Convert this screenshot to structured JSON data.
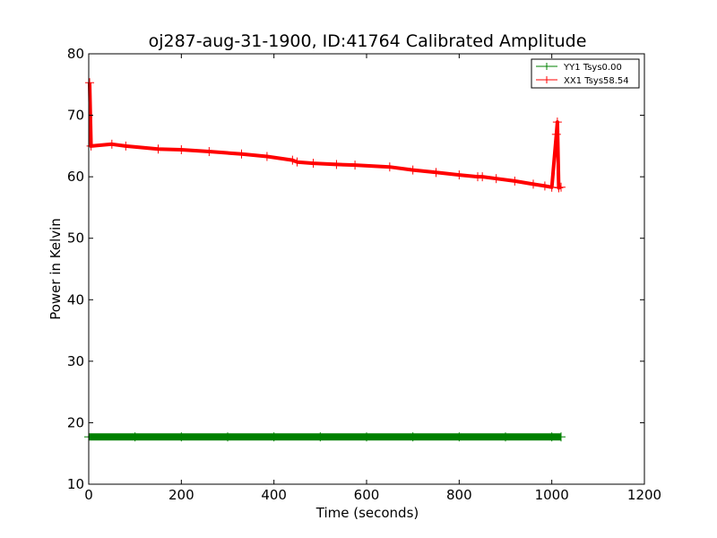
{
  "chart_data": {
    "type": "line",
    "title": "oj287-aug-31-1900, ID:41764 Calibrated Amplitude",
    "xlabel": "Time (seconds)",
    "ylabel": "Power in Kelvin",
    "xlim": [
      0,
      1200
    ],
    "ylim": [
      10,
      80
    ],
    "xticks": [
      "0",
      "200",
      "400",
      "600",
      "800",
      "1000",
      "1200"
    ],
    "yticks": [
      "10",
      "20",
      "30",
      "40",
      "50",
      "60",
      "70",
      "80"
    ],
    "grid": false,
    "legend_position": "top-right",
    "series": [
      {
        "name": "YY1 Tsys0.00",
        "color": "#008000",
        "marker": "+",
        "x": [
          0,
          100,
          200,
          300,
          400,
          500,
          600,
          700,
          800,
          900,
          1000,
          1020
        ],
        "y": [
          17.7,
          17.7,
          17.7,
          17.7,
          17.7,
          17.7,
          17.7,
          17.7,
          17.7,
          17.7,
          17.7,
          17.7
        ]
      },
      {
        "name": "XX1 Tsys58.54",
        "color": "#ff0000",
        "marker": "+",
        "x": [
          2,
          5,
          50,
          80,
          150,
          200,
          260,
          330,
          385,
          440,
          450,
          485,
          535,
          575,
          650,
          700,
          750,
          800,
          840,
          850,
          880,
          920,
          960,
          985,
          1000,
          1010,
          1012,
          1015,
          1020
        ],
        "y": [
          75.3,
          65.0,
          65.3,
          65.0,
          64.5,
          64.4,
          64.1,
          63.7,
          63.3,
          62.7,
          62.4,
          62.2,
          62.0,
          61.9,
          61.6,
          61.1,
          60.7,
          60.3,
          60.0,
          60.0,
          59.7,
          59.3,
          58.8,
          58.5,
          58.3,
          66.9,
          68.9,
          58.2,
          58.3
        ]
      }
    ]
  }
}
